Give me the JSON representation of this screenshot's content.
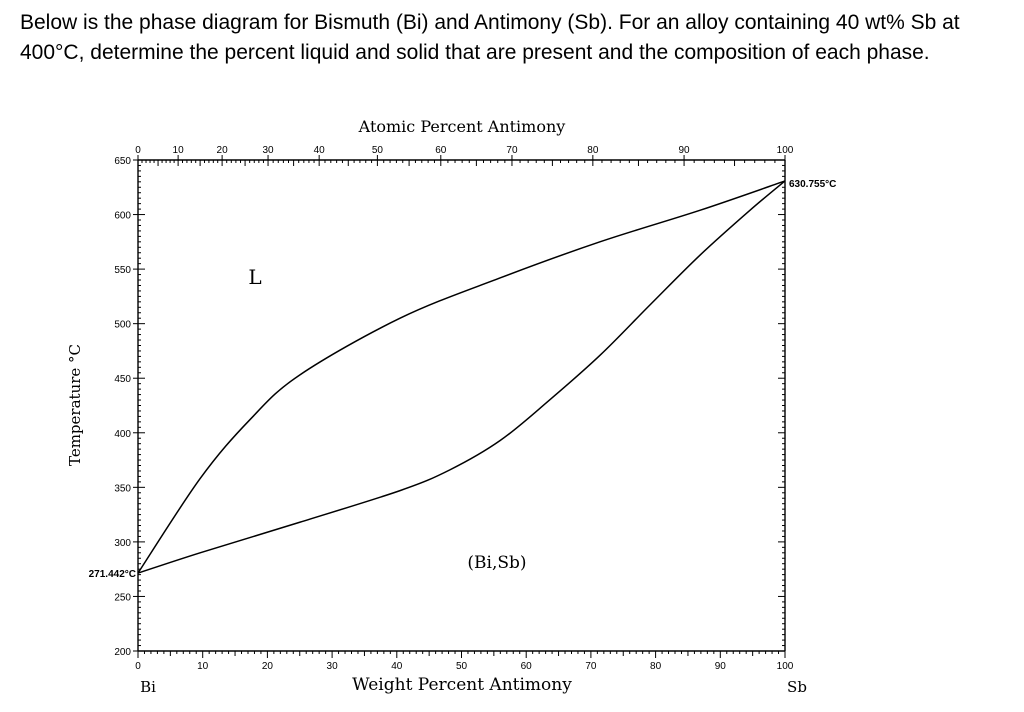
{
  "question": "Below is the phase diagram for Bismuth (Bi) and Antimony (Sb). For an alloy containing 40 wt% Sb at 400°C, determine the percent liquid and solid that are present and the composition of each phase.",
  "chart_data": {
    "type": "line",
    "top_axis_label": "Atomic Percent Antimony",
    "xlabel": "Weight Percent Antimony",
    "ylabel": "Temperature °C",
    "xlim": [
      0,
      100
    ],
    "ylim": [
      200,
      650
    ],
    "x_ticks": [
      0,
      10,
      20,
      30,
      40,
      50,
      60,
      70,
      80,
      90,
      100
    ],
    "y_ticks": [
      200,
      250,
      300,
      350,
      400,
      450,
      500,
      550,
      600,
      650
    ],
    "top_ticks_at_pct": [
      0,
      10,
      20,
      30,
      40,
      50,
      60,
      70,
      80,
      90,
      100
    ],
    "top_ticks_wt": [
      0,
      6.2,
      13,
      20.1,
      28,
      37,
      46.8,
      57.8,
      70.3,
      84.4,
      100
    ],
    "left_end_label": "Bi",
    "right_end_label": "Sb",
    "melting_point_bi": "271.442°C",
    "melting_point_sb": "630.755°C",
    "region_labels": {
      "liquid": "L",
      "solid": "(Bi,Sb)"
    },
    "series": [
      {
        "name": "liquidus",
        "x": [
          0,
          9.6,
          17.3,
          25,
          40.5,
          56,
          71.4,
          86.9,
          100
        ],
        "y": [
          271.4,
          358,
          412,
          453,
          505,
          542,
          575,
          604,
          630.8
        ]
      },
      {
        "name": "solidus",
        "x": [
          0,
          9.6,
          25,
          40.5,
          48.2,
          56,
          63.6,
          71.4,
          79.1,
          86.9,
          94.6,
          100
        ],
        "y": [
          271.4,
          290,
          318,
          347,
          366,
          393,
          430,
          471,
          517,
          563,
          604,
          630.8
        ]
      }
    ]
  }
}
